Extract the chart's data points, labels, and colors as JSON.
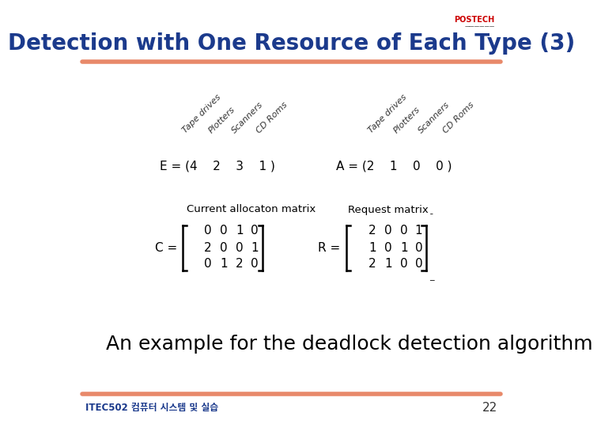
{
  "title": "Detection with One Resource of Each Type (3)",
  "title_color": "#1B3A8C",
  "title_fontsize": 20,
  "bg_color": "#FFFFFF",
  "header_line_color": "#E8896A",
  "footer_line_color": "#E8896A",
  "col_headers": [
    "Tape drives",
    "Plotters",
    "Scanners",
    "CD Roms"
  ],
  "E_label": "E = (4    2    3    1 )",
  "A_label": "A = (2    1    0    0 )",
  "C_matrix": [
    [
      0,
      0,
      1,
      0
    ],
    [
      2,
      0,
      0,
      1
    ],
    [
      0,
      1,
      2,
      0
    ]
  ],
  "R_matrix": [
    [
      2,
      0,
      0,
      1
    ],
    [
      1,
      0,
      1,
      0
    ],
    [
      2,
      1,
      0,
      0
    ]
  ],
  "current_alloc_label": "Current allocaton matrix",
  "request_label": "Request matrix",
  "bottom_text": "An example for the deadlock detection algorithm",
  "footer_text": "ITEC502 컴퓨터 시스템 및 실습",
  "page_number": "22",
  "matrix_color": "#000000",
  "text_color": "#000000",
  "label_color": "#1B3A8C",
  "footer_label_color": "#1B3A8C"
}
